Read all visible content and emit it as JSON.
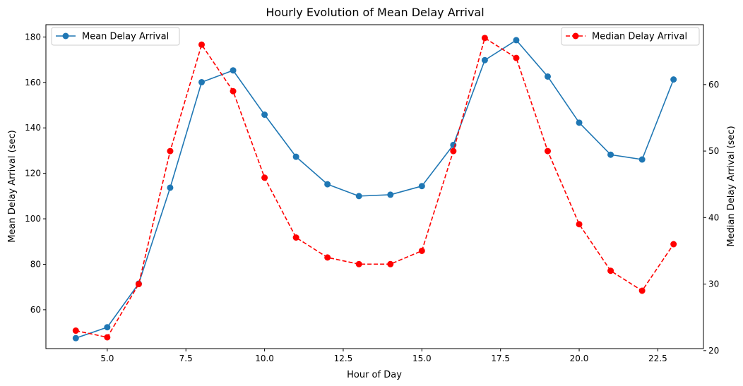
{
  "chart_data": {
    "type": "line",
    "title": "Hourly Evolution of Mean Delay Arrival",
    "xlabel": "Hour of Day",
    "ylabel_left": "Mean Delay Arrival (sec)",
    "ylabel_right": "Median Delay Arrival (sec)",
    "xlim": [
      3.05,
      23.95
    ],
    "ylim_left": [
      42.9,
      185.4
    ],
    "ylim_right": [
      20.3,
      69.0
    ],
    "x_ticks": [
      5.0,
      7.5,
      10.0,
      12.5,
      15.0,
      17.5,
      20.0,
      22.5
    ],
    "x_tick_labels": [
      "5.0",
      "7.5",
      "10.0",
      "12.5",
      "15.0",
      "17.5",
      "20.0",
      "22.5"
    ],
    "y_ticks_left": [
      60,
      80,
      100,
      120,
      140,
      160,
      180
    ],
    "y_tick_labels_left": [
      "60",
      "80",
      "100",
      "120",
      "140",
      "160",
      "180"
    ],
    "y_ticks_right": [
      20,
      30,
      40,
      50,
      60
    ],
    "y_tick_labels_right": [
      "20",
      "30",
      "40",
      "50",
      "60"
    ],
    "grid": false,
    "x": [
      4,
      5,
      6,
      7,
      8,
      9,
      10,
      11,
      12,
      13,
      14,
      15,
      16,
      17,
      18,
      19,
      20,
      21,
      22,
      23
    ],
    "series": [
      {
        "name": "Mean Delay Arrival",
        "axis": "left",
        "color": "#1f77b4",
        "linestyle": "solid",
        "marker": "circle",
        "legend_position": "top-left",
        "values": [
          47.5,
          52.3,
          71.5,
          113.7,
          160.1,
          165.3,
          145.8,
          127.3,
          115.2,
          110.0,
          110.6,
          114.4,
          132.5,
          169.8,
          178.6,
          162.6,
          142.3,
          128.2,
          126.1,
          161.3
        ]
      },
      {
        "name": "Median Delay Arrival",
        "axis": "right",
        "color": "#ff0000",
        "linestyle": "dashed",
        "marker": "circle",
        "legend_position": "top-right",
        "values": [
          23,
          22,
          30,
          50,
          66,
          59,
          46,
          37,
          34,
          33,
          33,
          35,
          50,
          67,
          64,
          50,
          39,
          32,
          29,
          36
        ]
      }
    ]
  }
}
